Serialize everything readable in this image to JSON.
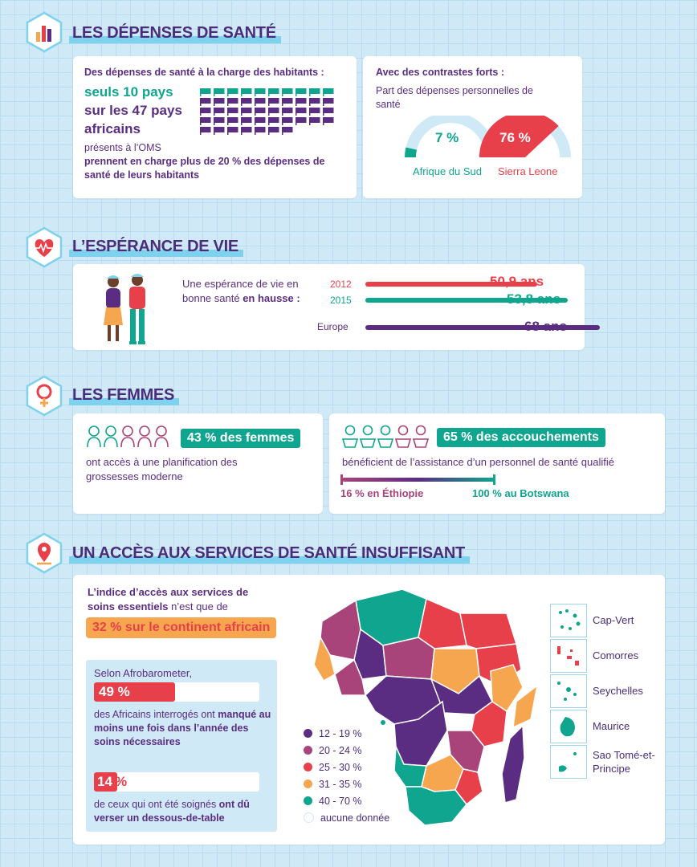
{
  "sections": {
    "s1_title": "LES DÉPENSES DE SANTÉ",
    "s2_title": "L’ESPÉRANCE DE VIE",
    "s3_title": "LES FEMMES",
    "s4_title": "UN ACCÈS AUX SERVICES DE SANTÉ INSUFFISANT"
  },
  "depenses": {
    "intro": "Des dépenses de santé à la charge des habitants :",
    "line1": "seuls 10 pays",
    "line2": "sur les 47 pays",
    "line3": "africains",
    "line4": "présents à l’OMS",
    "conclusion": "prennent en charge plus de 20 % des dépenses de santé de leurs habitants",
    "flags_total": 47,
    "flags_highlight": 10,
    "contrast_title": "Avec des contrastes forts :",
    "contrast_sub": "Part des dépenses personnelles de santé",
    "gauge_left_value": "7 %",
    "gauge_left_fraction": 0.07,
    "gauge_left_label": "Afrique du Sud",
    "gauge_right_value": "76 %",
    "gauge_right_fraction": 0.76,
    "gauge_right_label": "Sierra Leone"
  },
  "esperance": {
    "text_plain": "Une espérance de vie en bonne santé ",
    "text_bold": "en hausse :",
    "rows": [
      {
        "label": "2012",
        "value": "50,9 ans",
        "color": "#e8404a"
      },
      {
        "label": "2015",
        "value": "53,8 ans",
        "color": "#0fa58f"
      },
      {
        "label": "Europe",
        "value": "68 ans",
        "color": "#5a2d82"
      }
    ]
  },
  "femmes": {
    "left_badge": "43 % des femmes",
    "left_text": "ont accès à une planification des grossesses moderne",
    "right_badge": "65 % des accouchements",
    "right_text": "bénéficient de l’assistance d’un personnel de santé qualifié",
    "range_left": "16 % en Éthiopie",
    "range_right": "100 % au Botswana"
  },
  "acces": {
    "index_bold": "L’indice d’accès aux services de soins essentiels",
    "index_plain": " n’est que de",
    "index_badge": "32 % sur le continent africain",
    "afro_title": "Selon Afrobarometer,",
    "stat1_value": "49 %",
    "stat1_fraction": 0.49,
    "stat1_text_plain": "des Africains interrogés ont ",
    "stat1_text_bold": "manqué au moins une fois dans l’année des soins nécessaires",
    "stat2_value_num": "14",
    "stat2_value_pct": "%",
    "stat2_fraction": 0.14,
    "stat2_text_plain": "de ceux qui ont été soignés ",
    "stat2_text_bold": "ont dû verser un dessous-de-table",
    "legend": [
      {
        "label": "12 - 19 %",
        "color": "#5a2d82"
      },
      {
        "label": "20 - 24 %",
        "color": "#a8447a"
      },
      {
        "label": "25 - 30 %",
        "color": "#e8404a"
      },
      {
        "label": "31 - 35 %",
        "color": "#f6a64f"
      },
      {
        "label": "40 - 70 %",
        "color": "#0fa58f"
      },
      {
        "label": "aucune donnée",
        "color": "#ffffff"
      }
    ],
    "islands": [
      "Cap-Vert",
      "Comorres",
      "Seychelles",
      "Maurice",
      "Sao Tomé-et-Principe"
    ]
  }
}
